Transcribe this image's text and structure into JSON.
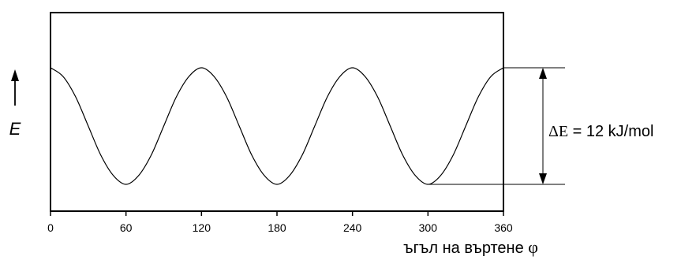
{
  "chart_data": {
    "type": "line",
    "title": "",
    "xlabel": "ъгъл на въртене",
    "xlabel_symbol": "φ",
    "ylabel": "E",
    "xlim": [
      0,
      360
    ],
    "ylim": [
      0,
      12
    ],
    "x_ticks": [
      0,
      60,
      120,
      180,
      240,
      300,
      360
    ],
    "grid": false,
    "series": [
      {
        "x": [
          0,
          10,
          20,
          30,
          40,
          50,
          60,
          70,
          80,
          90,
          100,
          110,
          120,
          130,
          140,
          150,
          160,
          170,
          180,
          190,
          200,
          210,
          220,
          230,
          240,
          250,
          260,
          270,
          280,
          290,
          300,
          310,
          320,
          330,
          340,
          350,
          360
        ],
        "y": [
          12,
          11.1,
          9,
          6,
          3,
          0.9,
          0,
          0.9,
          3,
          6,
          9,
          11.1,
          12,
          11.1,
          9,
          6,
          3,
          0.9,
          0,
          0.9,
          3,
          6,
          9,
          11.1,
          12,
          11.1,
          9,
          6,
          3,
          0.9,
          0,
          0.9,
          3,
          6,
          9,
          11.1,
          12
        ]
      }
    ],
    "annotation": {
      "symbol": "ΔE",
      "text": " = 12 kJ/mol",
      "from_y": 0,
      "to_y": 12
    },
    "colors": {
      "line": "#000000",
      "frame": "#000000"
    }
  }
}
